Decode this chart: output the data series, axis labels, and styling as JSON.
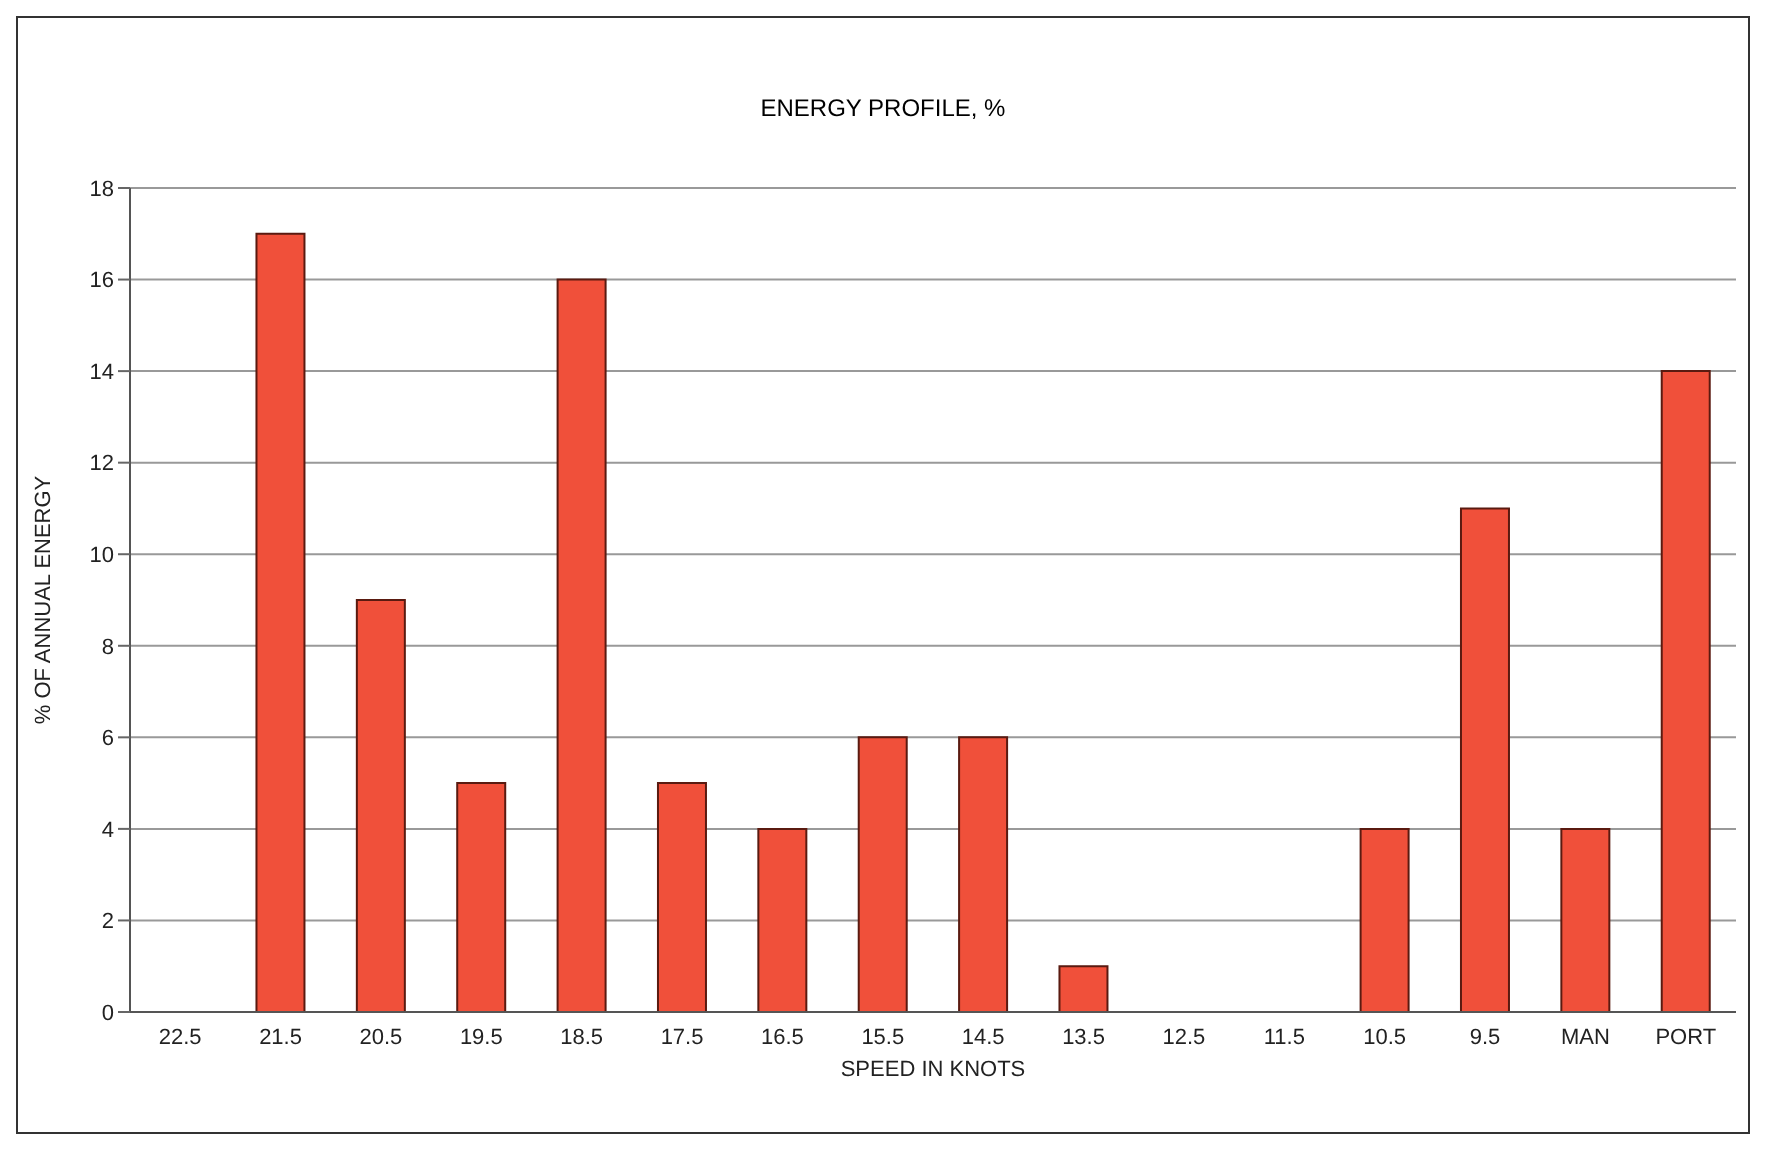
{
  "chart_data": {
    "type": "bar",
    "title": "ENERGY PROFILE, %",
    "xlabel": "SPEED IN KNOTS",
    "ylabel": "% OF ANNUAL ENERGY",
    "categories": [
      "22.5",
      "21.5",
      "20.5",
      "19.5",
      "18.5",
      "17.5",
      "16.5",
      "15.5",
      "14.5",
      "13.5",
      "12.5",
      "11.5",
      "10.5",
      "9.5",
      "MAN",
      "PORT"
    ],
    "values": [
      0,
      17,
      9,
      5,
      16,
      5,
      4,
      6,
      6,
      1,
      0,
      0,
      4,
      11,
      4,
      14
    ],
    "color": "#f0503a",
    "ylim": [
      0,
      18
    ],
    "yticks": [
      0,
      2,
      4,
      6,
      8,
      10,
      12,
      14,
      16,
      18
    ],
    "grid": "y"
  }
}
